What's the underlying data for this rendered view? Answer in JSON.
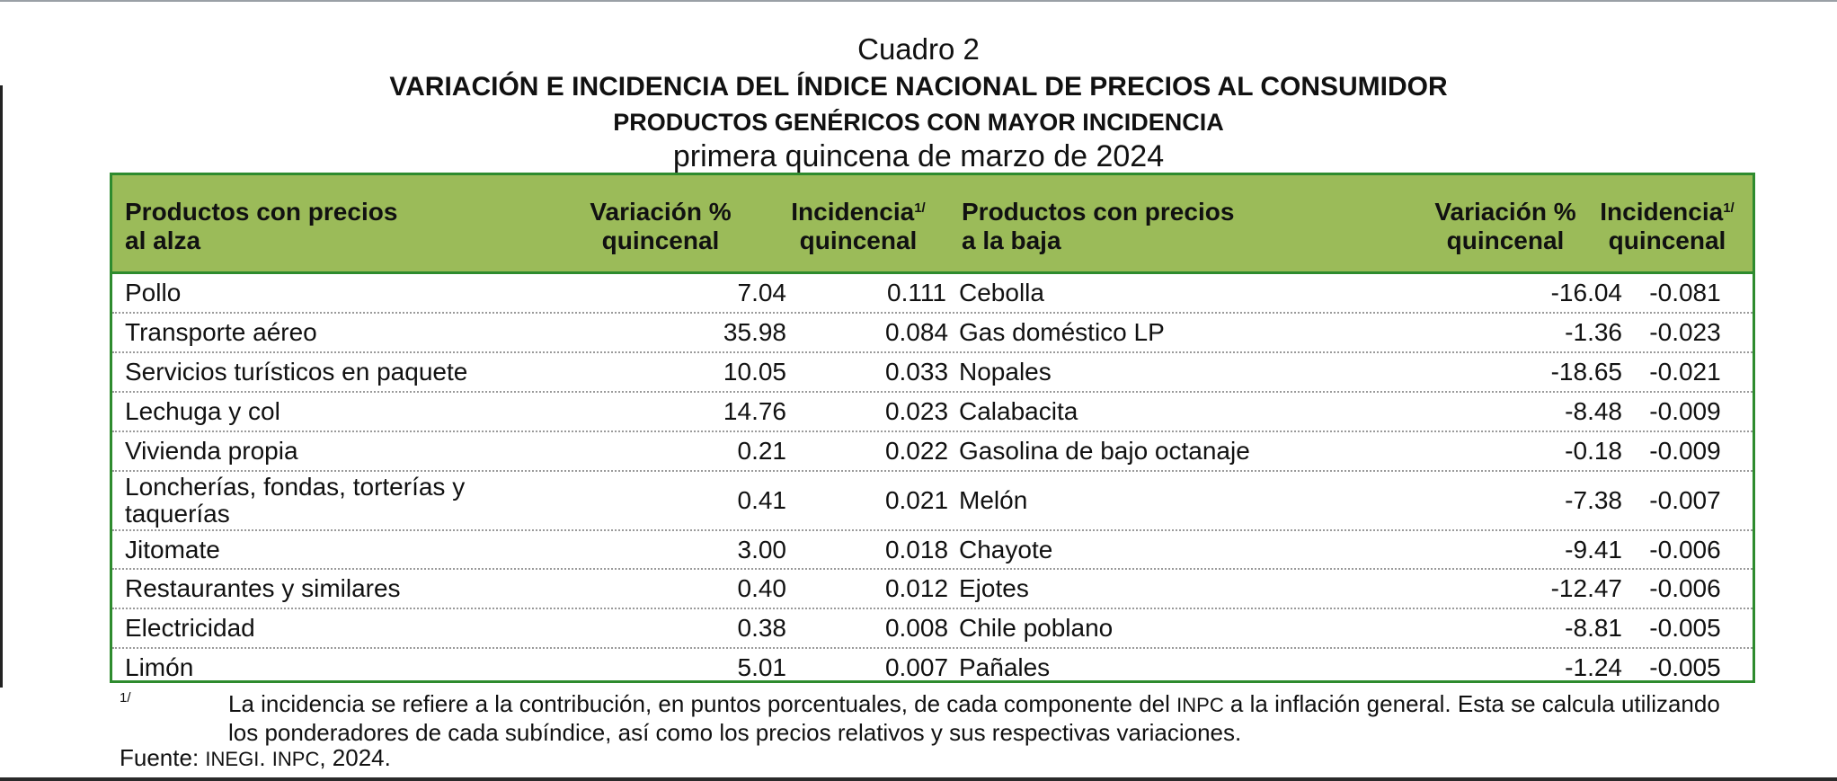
{
  "header": {
    "cuadro": "Cuadro 2",
    "title": "VARIACIÓN E INCIDENCIA DEL ÍNDICE NACIONAL DE PRECIOS AL CONSUMIDOR",
    "subtitle": "PRODUCTOS GENÉRICOS CON MAYOR INCIDENCIA",
    "period": "primera quincena de marzo de 2024"
  },
  "columns": {
    "alza_line1": "Productos con precios",
    "alza_line2": "al alza",
    "var_line1": "Variación %",
    "var_line2": "quincenal",
    "inc_line1": "Incidencia",
    "inc_sup": "1/",
    "inc_line2": "quincenal",
    "baja_line1": "Productos con precios",
    "baja_line2": "a la baja",
    "var2_line1": "Variación %",
    "var2_line2": "quincenal",
    "inc2_line1": "Incidencia",
    "inc2_sup": "1/",
    "inc2_line2": "quincenal"
  },
  "rows": [
    {
      "up_name": "Pollo",
      "up_var": "7.04",
      "up_inc": "0.111",
      "down_name": "Cebolla",
      "down_var": "-16.04",
      "down_inc": "-0.081"
    },
    {
      "up_name": "Transporte aéreo",
      "up_var": "35.98",
      "up_inc": "0.084",
      "down_name": "Gas doméstico LP",
      "down_var": "-1.36",
      "down_inc": "-0.023"
    },
    {
      "up_name": "Servicios turísticos en paquete",
      "up_var": "10.05",
      "up_inc": "0.033",
      "down_name": "Nopales",
      "down_var": "-18.65",
      "down_inc": "-0.021"
    },
    {
      "up_name": "Lechuga y col",
      "up_var": "14.76",
      "up_inc": "0.023",
      "down_name": "Calabacita",
      "down_var": "-8.48",
      "down_inc": "-0.009"
    },
    {
      "up_name": "Vivienda propia",
      "up_var": "0.21",
      "up_inc": "0.022",
      "down_name": "Gasolina de bajo octanaje",
      "down_var": "-0.18",
      "down_inc": "-0.009"
    },
    {
      "up_name": "Loncherías, fondas, torterías y taquerías",
      "up_var": "0.41",
      "up_inc": "0.021",
      "down_name": "Melón",
      "down_var": "-7.38",
      "down_inc": "-0.007"
    },
    {
      "up_name": "Jitomate",
      "up_var": "3.00",
      "up_inc": "0.018",
      "down_name": "Chayote",
      "down_var": "-9.41",
      "down_inc": "-0.006"
    },
    {
      "up_name": "Restaurantes y similares",
      "up_var": "0.40",
      "up_inc": "0.012",
      "down_name": "Ejotes",
      "down_var": "-12.47",
      "down_inc": "-0.006"
    },
    {
      "up_name": "Electricidad",
      "up_var": "0.38",
      "up_inc": "0.008",
      "down_name": "Chile poblano",
      "down_var": "-8.81",
      "down_inc": "-0.005"
    },
    {
      "up_name": "Limón",
      "up_var": "5.01",
      "up_inc": "0.007",
      "down_name": "Pañales",
      "down_var": "-1.24",
      "down_inc": "-0.005"
    }
  ],
  "footnote": {
    "mark": "1/",
    "text_part1": "La incidencia se refiere a la contribución, en puntos porcentuales, de cada componente del ",
    "text_inpc": "INPC",
    "text_part2": " a la inflación general. Esta se calcula utilizando los ponderadores de cada subíndice, así como los precios relativos y sus respectivas variaciones.",
    "source_label": "Fuente: ",
    "source_inegi": "INEGI",
    "source_sep": ". ",
    "source_inpc": "INPC",
    "source_year": ", 2024."
  }
}
